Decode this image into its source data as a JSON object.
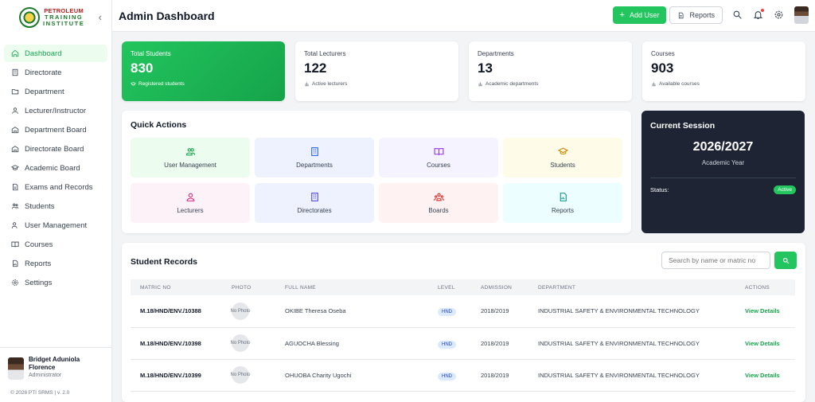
{
  "brand": {
    "line1": "PETROLEUM",
    "line2": "TRAINING",
    "line3": "INSTITUTE"
  },
  "sidebar": {
    "items": [
      {
        "label": "Dashboard"
      },
      {
        "label": "Directorate"
      },
      {
        "label": "Department"
      },
      {
        "label": "Lecturer/Instructor"
      },
      {
        "label": "Department Board"
      },
      {
        "label": "Directorate Board"
      },
      {
        "label": "Academic Board"
      },
      {
        "label": "Exams and Records"
      },
      {
        "label": "Students"
      },
      {
        "label": "User Management"
      },
      {
        "label": "Courses"
      },
      {
        "label": "Reports"
      },
      {
        "label": "Settings"
      }
    ],
    "user": {
      "name_line1": "Bridget Aduniola",
      "name_line2": "Florence",
      "role": "Administrator"
    },
    "footer": "© 2026 PTI SRMS | v. 2.0"
  },
  "header": {
    "title": "Admin Dashboard",
    "add_user": "Add User",
    "reports": "Reports"
  },
  "stats": [
    {
      "label": "Total Students",
      "value": "830",
      "sub": "Registered students"
    },
    {
      "label": "Total Lecturers",
      "value": "122",
      "sub": "Active lecturers"
    },
    {
      "label": "Departments",
      "value": "13",
      "sub": "Academic departments"
    },
    {
      "label": "Courses",
      "value": "903",
      "sub": "Available courses"
    }
  ],
  "quick_actions": {
    "title": "Quick Actions",
    "tiles": [
      {
        "label": "User Management"
      },
      {
        "label": "Departments"
      },
      {
        "label": "Courses"
      },
      {
        "label": "Students"
      },
      {
        "label": "Lecturers"
      },
      {
        "label": "Directorates"
      },
      {
        "label": "Boards"
      },
      {
        "label": "Reports"
      }
    ]
  },
  "session": {
    "title": "Current Session",
    "year": "2026/2027",
    "subtitle": "Academic Year",
    "status_label": "Status:",
    "status": "Active"
  },
  "records": {
    "title": "Student Records",
    "search_placeholder": "Search by name or matric no",
    "columns": [
      "MATRIC NO",
      "PHOTO",
      "FULL NAME",
      "LEVEL",
      "ADMISSION",
      "DEPARTMENT",
      "ACTIONS"
    ],
    "rows": [
      {
        "matric": "M.18/HND/ENV./10388",
        "photo": "No Photo",
        "name": "OKIBE Theresa Oseba",
        "level": "HND",
        "admission": "2018/2019",
        "department": "INDUSTRIAL SAFETY & ENVIRONMENTAL TECHNOLOGY",
        "action": "View Details"
      },
      {
        "matric": "M.18/HND/ENV./10398",
        "photo": "No Photo",
        "name": "AGUOCHA Blessing",
        "level": "HND",
        "admission": "2018/2019",
        "department": "INDUSTRIAL SAFETY & ENVIRONMENTAL TECHNOLOGY",
        "action": "View Details"
      },
      {
        "matric": "M.18/HND/ENV./10399",
        "photo": "No Photo",
        "name": "OHUOBA Charity Ugochi",
        "level": "HND",
        "admission": "2018/2019",
        "department": "INDUSTRIAL SAFETY & ENVIRONMENTAL TECHNOLOGY",
        "action": "View Details"
      }
    ]
  }
}
